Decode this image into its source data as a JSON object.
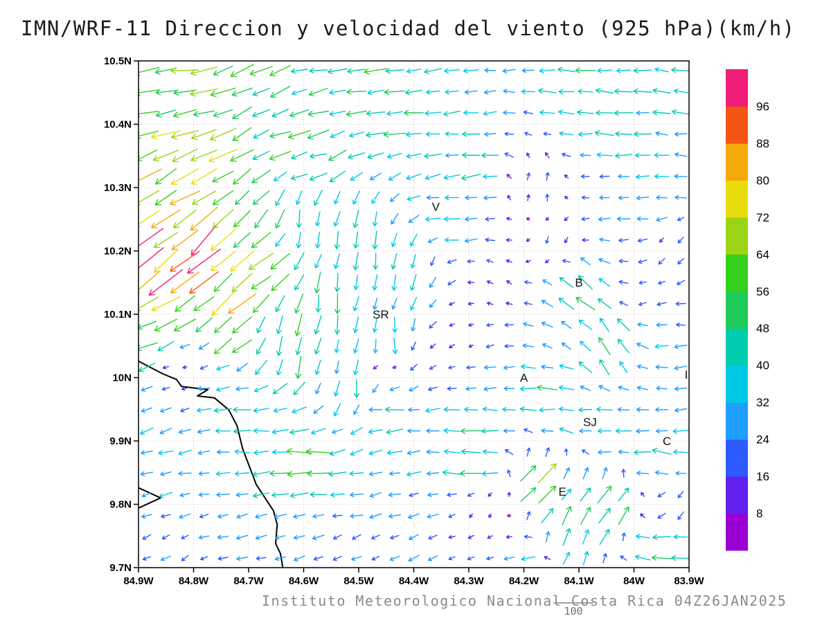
{
  "chart_data": {
    "type": "quiver",
    "title": "IMN/WRF-11 Direccion y velocidad del viento (925 hPa)(km/h)",
    "caption": "Instituto Meteorologico Nacional Costa Rica 04Z26JAN2025",
    "reference_label": "100",
    "lon_range": [
      84.9,
      83.9
    ],
    "lat_range": [
      9.7,
      10.5
    ],
    "x_axis": {
      "ticks": [
        {
          "label": "84.9W",
          "lon": 84.9
        },
        {
          "label": "84.8W",
          "lon": 84.8
        },
        {
          "label": "84.7W",
          "lon": 84.7
        },
        {
          "label": "84.6W",
          "lon": 84.6
        },
        {
          "label": "84.5W",
          "lon": 84.5
        },
        {
          "label": "84.4W",
          "lon": 84.4
        },
        {
          "label": "84.3W",
          "lon": 84.3
        },
        {
          "label": "84.2W",
          "lon": 84.2
        },
        {
          "label": "84.1W",
          "lon": 84.1
        },
        {
          "label": "84W",
          "lon": 84.0
        },
        {
          "label": "83.9W",
          "lon": 83.9
        }
      ]
    },
    "y_axis": {
      "ticks": [
        {
          "label": "9.7N",
          "lat": 9.7
        },
        {
          "label": "9.8N",
          "lat": 9.8
        },
        {
          "label": "9.9N",
          "lat": 9.9
        },
        {
          "label": "10N",
          "lat": 10.0
        },
        {
          "label": "10.1N",
          "lat": 10.1
        },
        {
          "label": "10.2N",
          "lat": 10.2
        },
        {
          "label": "10.3N",
          "lat": 10.3
        },
        {
          "label": "10.4N",
          "lat": 10.4
        },
        {
          "label": "10.5N",
          "lat": 10.5
        }
      ]
    },
    "colorbar": {
      "levels": [
        8,
        16,
        24,
        32,
        40,
        48,
        56,
        64,
        72,
        80,
        88,
        96
      ],
      "colors": [
        "#9b00d3",
        "#6420ee",
        "#2e5bff",
        "#1e9eff",
        "#00c8e6",
        "#00ccae",
        "#1ecb5a",
        "#35d01e",
        "#9bd414",
        "#e8dc0f",
        "#f5a80a",
        "#f55514",
        "#f01e78"
      ]
    },
    "cities": [
      {
        "label": "V",
        "lon": 84.36,
        "lat": 10.27
      },
      {
        "label": "SR",
        "lon": 84.46,
        "lat": 10.1
      },
      {
        "label": "B",
        "lon": 84.1,
        "lat": 10.15
      },
      {
        "label": "A",
        "lon": 84.2,
        "lat": 10.0
      },
      {
        "label": "SJ",
        "lon": 84.08,
        "lat": 9.93
      },
      {
        "label": "C",
        "lon": 83.94,
        "lat": 9.9
      },
      {
        "label": "E",
        "lon": 84.13,
        "lat": 9.82
      },
      {
        "label": "I",
        "lon": 83.905,
        "lat": 10.005
      }
    ],
    "coastlines": [
      [
        [
          84.9,
          10.026
        ],
        [
          84.856,
          10.006
        ],
        [
          84.831,
          9.997
        ],
        [
          84.822,
          9.986
        ],
        [
          84.774,
          9.981
        ],
        [
          84.793,
          9.971
        ],
        [
          84.762,
          9.968
        ],
        [
          84.736,
          9.949
        ],
        [
          84.721,
          9.924
        ],
        [
          84.711,
          9.888
        ],
        [
          84.686,
          9.831
        ],
        [
          84.655,
          9.79
        ],
        [
          84.648,
          9.768
        ],
        [
          84.651,
          9.738
        ],
        [
          84.642,
          9.722
        ],
        [
          84.638,
          9.7
        ]
      ],
      [
        [
          84.9,
          9.826
        ],
        [
          84.86,
          9.81
        ],
        [
          84.9,
          9.794
        ]
      ]
    ],
    "wind_field": {
      "fields": [
        "lonW",
        "latN",
        "dir_deg_math",
        "speed_kmh"
      ],
      "grid": {
        "cols": 29,
        "rows": 24,
        "lon_start": 84.885,
        "lon_end": 83.915,
        "lat_start": 9.715,
        "lat_end": 10.485
      },
      "control_points": [
        [
          84.85,
          10.48,
          185,
          58
        ],
        [
          84.5,
          10.48,
          182,
          50
        ],
        [
          84.1,
          10.48,
          178,
          42
        ],
        [
          83.93,
          10.46,
          175,
          40
        ],
        [
          84.85,
          10.41,
          190,
          62
        ],
        [
          84.45,
          10.41,
          185,
          46
        ],
        [
          84.05,
          10.4,
          178,
          40
        ],
        [
          84.85,
          10.35,
          205,
          70
        ],
        [
          84.6,
          10.34,
          195,
          50
        ],
        [
          84.3,
          10.33,
          185,
          40
        ],
        [
          83.95,
          10.32,
          172,
          36
        ],
        [
          84.87,
          10.27,
          218,
          80
        ],
        [
          84.8,
          10.2,
          222,
          88
        ],
        [
          84.87,
          10.17,
          225,
          96
        ],
        [
          84.75,
          10.12,
          220,
          76
        ],
        [
          84.82,
          10.3,
          212,
          72
        ],
        [
          84.7,
          10.17,
          215,
          66
        ],
        [
          84.88,
          10.08,
          200,
          55
        ],
        [
          84.6,
          10.25,
          262,
          45
        ],
        [
          84.5,
          10.22,
          268,
          42
        ],
        [
          84.42,
          10.17,
          262,
          38
        ],
        [
          84.55,
          10.12,
          265,
          50
        ],
        [
          84.62,
          10.06,
          260,
          55
        ],
        [
          84.45,
          10.05,
          272,
          40
        ],
        [
          84.5,
          9.99,
          268,
          38
        ],
        [
          84.33,
          10.26,
          180,
          35
        ],
        [
          84.25,
          10.15,
          150,
          14
        ],
        [
          84.3,
          10.05,
          210,
          12
        ],
        [
          84.15,
          10.22,
          250,
          16
        ],
        [
          84.18,
          10.3,
          80,
          20
        ],
        [
          84.1,
          10.14,
          140,
          50
        ],
        [
          84.04,
          10.05,
          120,
          48
        ],
        [
          83.97,
          10.12,
          195,
          20
        ],
        [
          83.92,
          10.2,
          230,
          18
        ],
        [
          84.0,
          10.28,
          185,
          28
        ],
        [
          83.93,
          10.02,
          185,
          30
        ],
        [
          84.82,
          10.01,
          190,
          10
        ],
        [
          84.45,
          10.01,
          185,
          12
        ],
        [
          84.28,
          10.0,
          182,
          30
        ],
        [
          84.75,
          9.95,
          182,
          38
        ],
        [
          84.45,
          9.95,
          180,
          42
        ],
        [
          84.15,
          9.96,
          178,
          45
        ],
        [
          83.95,
          9.95,
          185,
          30
        ],
        [
          84.7,
          9.9,
          180,
          40
        ],
        [
          84.3,
          9.91,
          178,
          44
        ],
        [
          84.05,
          9.92,
          185,
          35
        ],
        [
          84.6,
          9.87,
          182,
          55
        ],
        [
          84.3,
          9.87,
          180,
          50
        ],
        [
          83.95,
          9.88,
          175,
          40
        ],
        [
          84.17,
          9.83,
          48,
          60
        ],
        [
          84.05,
          9.8,
          52,
          55
        ],
        [
          84.12,
          9.76,
          60,
          45
        ],
        [
          84.75,
          9.82,
          185,
          30
        ],
        [
          84.5,
          9.8,
          190,
          28
        ],
        [
          84.75,
          9.75,
          195,
          25
        ],
        [
          84.4,
          9.74,
          200,
          24
        ],
        [
          84.8,
          9.71,
          210,
          20
        ],
        [
          84.5,
          9.71,
          205,
          22
        ],
        [
          84.2,
          9.71,
          195,
          28
        ],
        [
          83.95,
          9.72,
          175,
          45
        ],
        [
          83.92,
          9.8,
          230,
          20
        ],
        [
          84.27,
          9.79,
          240,
          12
        ]
      ]
    }
  }
}
